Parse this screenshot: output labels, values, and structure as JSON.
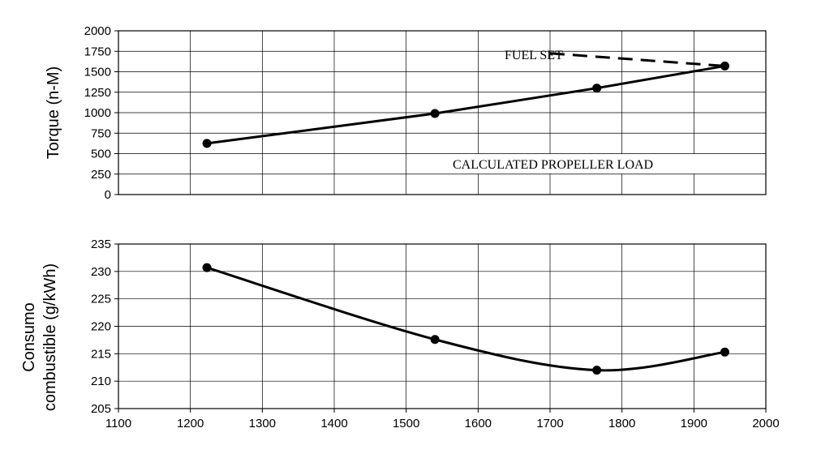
{
  "chart_data": [
    {
      "type": "line",
      "ylabel": "Torque (n-M)",
      "xlabel": "",
      "xlim": [
        1100,
        2000
      ],
      "ylim": [
        0,
        2000
      ],
      "x_ticks": [
        "1100",
        "1200",
        "1300",
        "1400",
        "1500",
        "1600",
        "1700",
        "1800",
        "1900",
        "2000"
      ],
      "y_ticks": [
        "0",
        "250",
        "500",
        "750",
        "1000",
        "1250",
        "1500",
        "1750",
        "2000"
      ],
      "grid": true,
      "series": [
        {
          "name": "CALCULATED PROPELLER LOAD",
          "style": "solid",
          "markers": true,
          "x": [
            1223,
            1540,
            1765,
            1943
          ],
          "y": [
            625,
            990,
            1300,
            1570
          ]
        },
        {
          "name": "FUEL SET",
          "style": "dashed",
          "markers": false,
          "x": [
            1700,
            1943
          ],
          "y": [
            1725,
            1570
          ]
        }
      ],
      "annotations": [
        "FUEL SET",
        "CALCULATED PROPELLER LOAD"
      ]
    },
    {
      "type": "line",
      "ylabel": "Consumo combustible (g/kWh)",
      "ylabel_lines": [
        "Consumo",
        "combustible (g/kWh)"
      ],
      "xlabel": "",
      "xlim": [
        1100,
        2000
      ],
      "ylim": [
        205,
        235
      ],
      "x_ticks": [
        "1100",
        "1200",
        "1300",
        "1400",
        "1500",
        "1600",
        "1700",
        "1800",
        "1900",
        "2000"
      ],
      "y_ticks": [
        "205",
        "210",
        "215",
        "220",
        "225",
        "230",
        "235"
      ],
      "grid": true,
      "series": [
        {
          "name": "",
          "style": "solid",
          "markers": true,
          "smooth": true,
          "x": [
            1223,
            1540,
            1765,
            1943
          ],
          "y": [
            230.7,
            217.6,
            212.0,
            215.3
          ]
        }
      ]
    }
  ],
  "colors": {
    "line": "#000000",
    "grid": "#000000",
    "background": "#ffffff"
  }
}
